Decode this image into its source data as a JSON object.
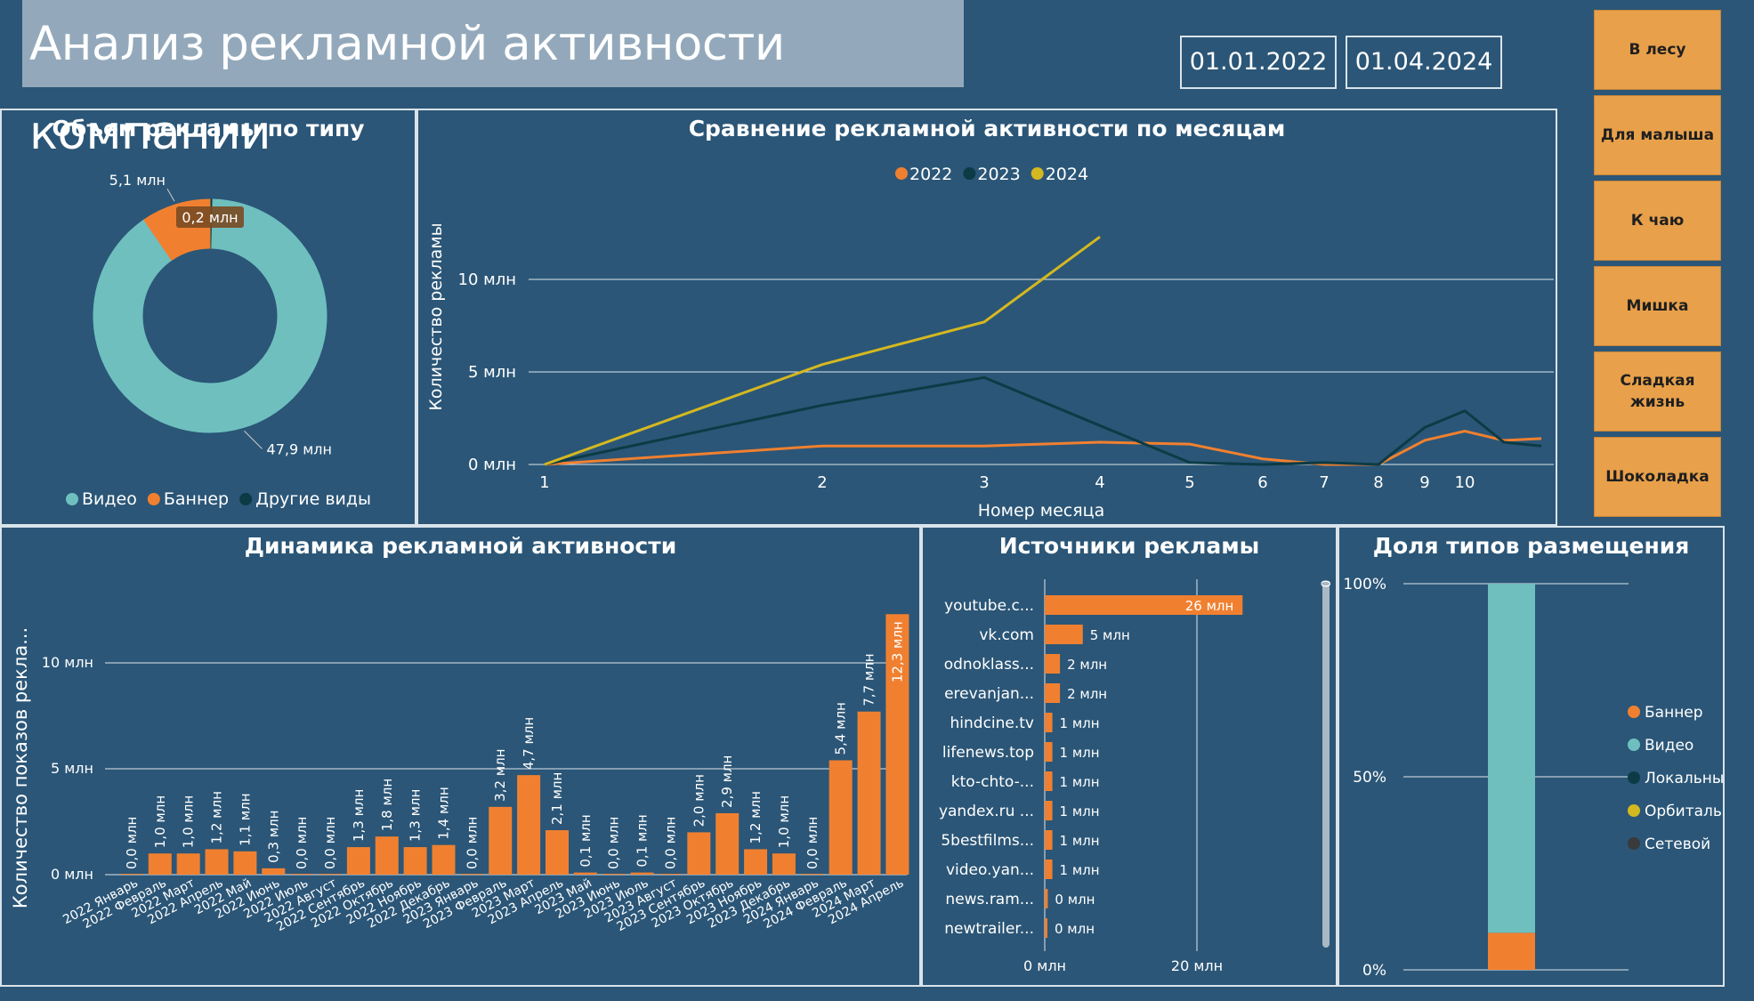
{
  "header": {
    "title": "Анализ рекламной активности компании",
    "date_from": "01.01.2022",
    "date_to": "01.04.2024"
  },
  "slicer": {
    "items": [
      "В лесу",
      "Для малыша",
      "К чаю",
      "Мишка",
      "Сладкая жизнь",
      "Шоколадка"
    ]
  },
  "colors": {
    "background": "#2b5677",
    "orange": "#f08030",
    "teal": "#6fbfbf",
    "dark_teal": "#0c3b45",
    "yellow": "#d4b820",
    "slicer": "#e8a04a",
    "title_box": "#93a9bb"
  },
  "chart_data": [
    {
      "id": "donut",
      "type": "pie",
      "title": "Объем рекламы по типу",
      "slices": [
        {
          "name": "Видео",
          "value": 47.9,
          "label": "47,9 млн",
          "color": "#6fbfbf"
        },
        {
          "name": "Баннер",
          "value": 5.1,
          "label": "5,1 млн",
          "color": "#f08030"
        },
        {
          "name": "Другие виды",
          "value": 0.2,
          "label": "0,2 млн",
          "color": "#0c3b45"
        }
      ],
      "legend_position": "bottom"
    },
    {
      "id": "monthly",
      "type": "line",
      "title": "Сравнение рекламной активности по месяцам",
      "xlabel": "Номер месяца",
      "ylabel": "Количество рекламы",
      "x_ticks": [
        1,
        2,
        3,
        4,
        5,
        6,
        7,
        8,
        9,
        10
      ],
      "y_ticks": [
        0,
        5,
        10
      ],
      "y_tick_labels": [
        "0 млн",
        "5 млн",
        "10 млн"
      ],
      "ylim": [
        0,
        12.5
      ],
      "legend_position": "top",
      "series": [
        {
          "name": "2022",
          "color": "#f08030",
          "x": [
            1,
            2,
            3,
            4,
            5,
            6,
            7,
            8,
            9,
            10,
            11,
            12
          ],
          "values": [
            0.0,
            1.0,
            1.0,
            1.2,
            1.1,
            0.3,
            0.0,
            0.0,
            1.3,
            1.8,
            1.3,
            1.4
          ]
        },
        {
          "name": "2023",
          "color": "#0c3b45",
          "x": [
            1,
            2,
            3,
            4,
            5,
            6,
            7,
            8,
            9,
            10,
            11,
            12
          ],
          "values": [
            0.0,
            3.2,
            4.7,
            2.1,
            0.1,
            0.0,
            0.1,
            0.0,
            2.0,
            2.9,
            1.2,
            1.0
          ]
        },
        {
          "name": "2024",
          "color": "#d4b820",
          "x": [
            1,
            2,
            3,
            4
          ],
          "values": [
            0.0,
            5.4,
            7.7,
            12.3
          ]
        }
      ]
    },
    {
      "id": "dynamics",
      "type": "bar",
      "title": "Динамика рекламной активности",
      "ylabel": "Количество показов рекла...",
      "y_ticks": [
        0,
        5,
        10
      ],
      "y_tick_labels": [
        "0 млн",
        "5 млн",
        "10 млн"
      ],
      "ylim": [
        0,
        12.3
      ],
      "categories": [
        "2022 Январь",
        "2022 Февраль",
        "2022 Март",
        "2022 Апрель",
        "2022 Май",
        "2022 Июнь",
        "2022 Июль",
        "2022 Август",
        "2022 Сентябрь",
        "2022 Октябрь",
        "2022 Ноябрь",
        "2022 Декабрь",
        "2023 Январь",
        "2023 Февраль",
        "2023 Март",
        "2023 Апрель",
        "2023 Май",
        "2023 Июнь",
        "2023 Июль",
        "2023 Август",
        "2023 Сентябрь",
        "2023 Октябрь",
        "2023 Ноябрь",
        "2023 Декабрь",
        "2024 Январь",
        "2024 Февраль",
        "2024 Март",
        "2024 Апрель"
      ],
      "values": [
        0.0,
        1.0,
        1.0,
        1.2,
        1.1,
        0.3,
        0.0,
        0.0,
        1.3,
        1.8,
        1.3,
        1.4,
        0.0,
        3.2,
        4.7,
        2.1,
        0.1,
        0.0,
        0.1,
        0.0,
        2.0,
        2.9,
        1.2,
        1.0,
        0.0,
        5.4,
        7.7,
        12.3
      ],
      "data_labels": [
        "0,0 млн",
        "1,0 млн",
        "1,0 млн",
        "1,2 млн",
        "1,1 млн",
        "0,3 млн",
        "0,0 млн",
        "0,0 млн",
        "1,3 млн",
        "1,8 млн",
        "1,3 млн",
        "1,4 млн",
        "0,0 млн",
        "3,2 млн",
        "4,7 млн",
        "2,1 млн",
        "0,1 млн",
        "0,0 млн",
        "0,1 млн",
        "0,0 млн",
        "2,0 млн",
        "2,9 млн",
        "1,2 млн",
        "1,0 млн",
        "0,0 млн",
        "5,4 млн",
        "7,7 млн",
        "12,3 млн"
      ],
      "color": "#f08030"
    },
    {
      "id": "sources",
      "type": "bar",
      "orientation": "horizontal",
      "title": "Источники рекламы",
      "categories": [
        "youtube.c...",
        "vk.com",
        "odnoklass...",
        "erevanjan...",
        "hindcine.tv",
        "lifenews.top",
        "kto-chto-...",
        "yandex.ru ...",
        "5bestfilms...",
        "video.yan...",
        "news.ram...",
        "newtrailer..."
      ],
      "values": [
        26,
        5,
        2,
        2,
        1,
        1,
        1,
        1,
        1,
        1,
        0.4,
        0.3
      ],
      "data_labels": [
        "26 млн",
        "5 млн",
        "2 млн",
        "2 млн",
        "1 млн",
        "1 млн",
        "1 млн",
        "1 млн",
        "1 млн",
        "1 млн",
        "0 млн",
        "0 млн"
      ],
      "x_ticks": [
        0,
        20
      ],
      "x_tick_labels": [
        "0 млн",
        "20 млн"
      ],
      "xlim": [
        0,
        28
      ],
      "scroll_label": "0",
      "color": "#f08030"
    },
    {
      "id": "share",
      "type": "bar",
      "stacked": "100%",
      "title": "Доля типов размещения",
      "y_ticks": [
        0,
        50,
        100
      ],
      "y_tick_labels": [
        "0%",
        "50%",
        "100%"
      ],
      "series": [
        {
          "name": "Баннер",
          "value": 9.6,
          "color": "#f08030"
        },
        {
          "name": "Видео",
          "value": 90.4,
          "color": "#6fbfbf"
        },
        {
          "name": "Локальный",
          "value": 0,
          "color": "#0c3b45"
        },
        {
          "name": "Орбиталь...",
          "value": 0,
          "color": "#d4b820"
        },
        {
          "name": "Сетевой",
          "value": 0,
          "color": "#3a3a3a"
        }
      ],
      "legend_position": "right"
    }
  ]
}
